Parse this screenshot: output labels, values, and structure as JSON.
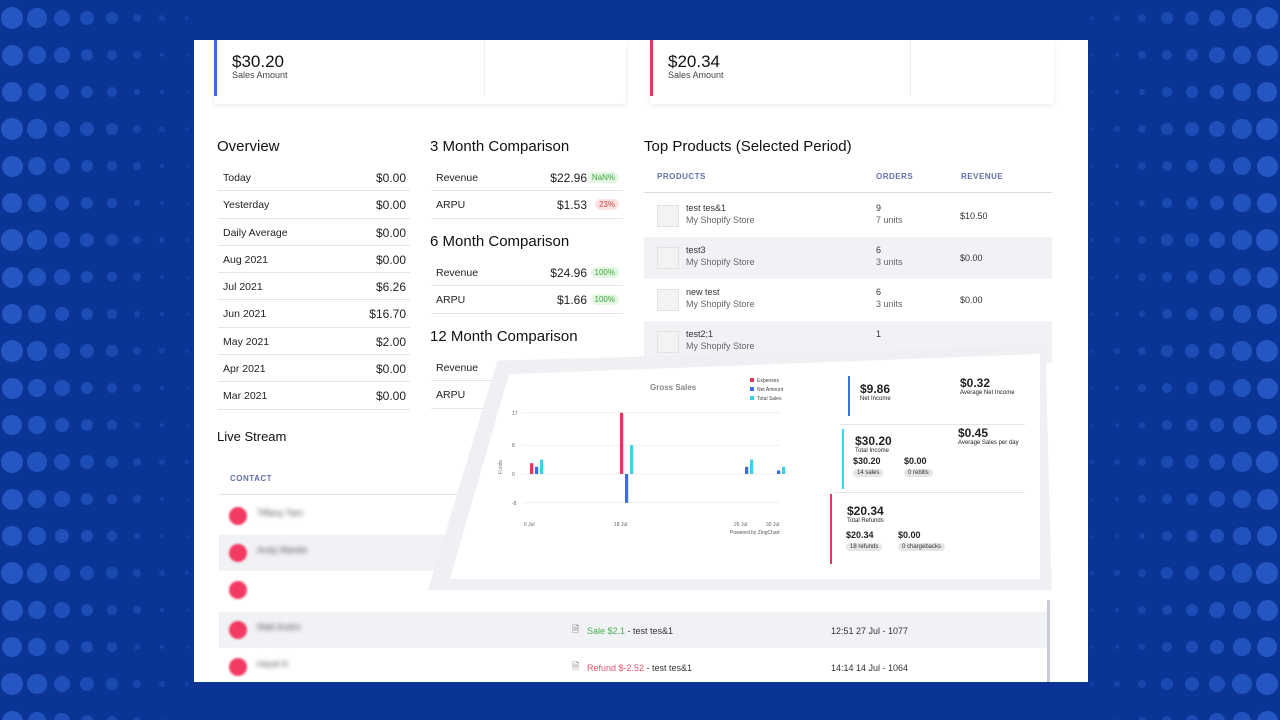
{
  "kpis": [
    {
      "value": "$30.20",
      "label": "Sales Amount",
      "color": "#3a6ee8"
    },
    {
      "value": "$20.34",
      "label": "Sales Amount",
      "color": "#e8345e"
    }
  ],
  "overview": {
    "title": "Overview",
    "rows": [
      {
        "label": "Today",
        "value": "$0.00"
      },
      {
        "label": "Yesterday",
        "value": "$0.00"
      },
      {
        "label": "Daily Average",
        "value": "$0.00"
      },
      {
        "label": "Aug 2021",
        "value": "$0.00"
      },
      {
        "label": "Jul 2021",
        "value": "$6.26"
      },
      {
        "label": "Jun 2021",
        "value": "$16.70"
      },
      {
        "label": "May 2021",
        "value": "$2.00"
      },
      {
        "label": "Apr 2021",
        "value": "$0.00"
      },
      {
        "label": "Mar 2021",
        "value": "$0.00"
      }
    ]
  },
  "comparisons": [
    {
      "title": "3 Month Comparison",
      "rows": [
        {
          "label": "Revenue",
          "value": "$22.96",
          "badge": "NaN%",
          "badge_type": "g"
        },
        {
          "label": "ARPU",
          "value": "$1.53",
          "badge": "23%",
          "badge_type": "r"
        }
      ]
    },
    {
      "title": "6 Month Comparison",
      "rows": [
        {
          "label": "Revenue",
          "value": "$24.96",
          "badge": "100%",
          "badge_type": "g"
        },
        {
          "label": "ARPU",
          "value": "$1.66",
          "badge": "100%",
          "badge_type": "g"
        }
      ]
    },
    {
      "title": "12 Month Comparison",
      "rows": [
        {
          "label": "Revenue",
          "value": "",
          "badge": "",
          "badge_type": ""
        },
        {
          "label": "ARPU",
          "value": "",
          "badge": "",
          "badge_type": ""
        }
      ]
    }
  ],
  "top_products": {
    "title": "Top Products (Selected Period)",
    "headers": {
      "products": "PRODUCTS",
      "orders": "ORDERS",
      "revenue": "REVENUE"
    },
    "rows": [
      {
        "name": "test tes&1",
        "store": "My Shopify Store",
        "orders": "9",
        "units": "7 units",
        "revenue": "$10.50"
      },
      {
        "name": "test3",
        "store": "My Shopify Store",
        "orders": "6",
        "units": "3 units",
        "revenue": "$0.00"
      },
      {
        "name": "new test",
        "store": "My Shopify Store",
        "orders": "6",
        "units": "3 units",
        "revenue": "$0.00"
      },
      {
        "name": "test2;1",
        "store": "My Shopify Store",
        "orders": "1",
        "units": "",
        "revenue": ""
      }
    ]
  },
  "live_stream": {
    "title": "Live Stream",
    "contact_header": "CONTACT",
    "contacts": [
      "Tiffany Tam",
      "Andy Mantle",
      "",
      "Matt Andre",
      "Hazel K"
    ],
    "events": [
      {
        "kind": "Sale $2.1",
        "kind_color": "#4caf50",
        "product": " - test tes&1",
        "time": "12:51 27 Jul - 1077"
      },
      {
        "kind": "Refund $-2.52",
        "kind_color": "#e8536e",
        "product": " - test tes&1",
        "time": "14:14 14 Jul - 1064"
      }
    ]
  },
  "overlay": {
    "chart_title": "Gross Sales",
    "legend": [
      {
        "name": "Expenses",
        "color": "#e8345e"
      },
      {
        "name": "Net Amount",
        "color": "#3a6ee8"
      },
      {
        "name": "Total Sales",
        "color": "#37d3e8"
      }
    ],
    "y_label": "Funds",
    "y_ticks": [
      "17",
      "8",
      "0",
      "-8"
    ],
    "x_ticks": [
      "6 Jul",
      "18 Jul",
      "26 Jul",
      "30 Jul"
    ],
    "powered": "Powered by ZingChart",
    "stats": {
      "net_income": {
        "value": "$9.86",
        "label": "Net Income"
      },
      "avg_net_income": {
        "value": "$0.32",
        "label": "Average Net Income"
      },
      "total_income": {
        "value": "$30.20",
        "label": "Total Income"
      },
      "avg_sales_day": {
        "value": "$0.45",
        "label": "Average Sales per day"
      },
      "sales": {
        "value": "$30.20",
        "pill": "14 sales"
      },
      "rebills": {
        "value": "$0.00",
        "pill": "0 rebills"
      },
      "total_refunds": {
        "value": "$20.34",
        "label": "Total Refunds"
      },
      "refunds": {
        "value": "$20.34",
        "pill": "18 refunds"
      },
      "chargebacks": {
        "value": "$0.00",
        "pill": "0 chargebacks"
      }
    }
  },
  "chart_data": {
    "type": "bar",
    "title": "Gross Sales",
    "ylabel": "Funds",
    "x": [
      "6 Jul",
      "18 Jul",
      "26 Jul",
      "30 Jul"
    ],
    "series": [
      {
        "name": "Expenses",
        "values": [
          3,
          17,
          0,
          0
        ]
      },
      {
        "name": "Net Amount",
        "values": [
          2,
          -8,
          2,
          1
        ]
      },
      {
        "name": "Total Sales",
        "values": [
          4,
          8,
          4,
          2
        ]
      }
    ]
  }
}
